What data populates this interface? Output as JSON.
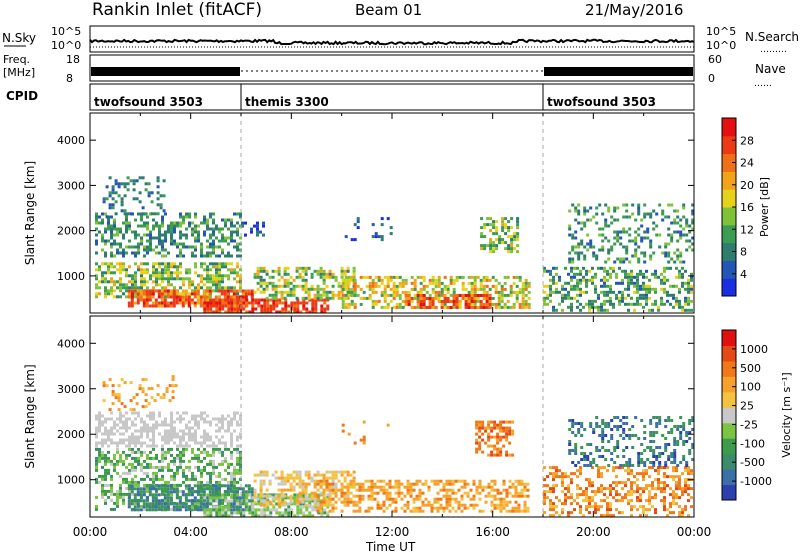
{
  "header": {
    "station": "Rankin Inlet (fitACF)",
    "beam": "Beam 01",
    "date": "21/May/2016"
  },
  "panels": {
    "nsky": {
      "left_label": "N.Sky",
      "right_label": "N.Search",
      "left_ticks": [
        "10^5",
        "10^0"
      ],
      "right_ticks": [
        "10^5",
        "10^0"
      ]
    },
    "freq": {
      "left_label_1": "Freq.",
      "left_label_2": "[MHz]",
      "right_label": "Nave",
      "left_ticks": [
        "18",
        "8"
      ],
      "right_ticks": [
        "60",
        "0"
      ]
    },
    "cpid": {
      "label": "CPID",
      "modes": [
        {
          "name": "twofsound 3503",
          "start": 0,
          "end": 6
        },
        {
          "name": "themis 3300",
          "start": 6,
          "end": 18
        },
        {
          "name": "twofsound 3503",
          "start": 18,
          "end": 24
        }
      ]
    }
  },
  "chart_data": [
    {
      "type": "heatmap",
      "name": "power",
      "ylabel": "Slant Range [km]",
      "yticks": [
        1000,
        2000,
        3000,
        4000
      ],
      "ylim": [
        180,
        4600
      ],
      "xlim": [
        0,
        24
      ],
      "colorbar": {
        "label": "Power [dB]",
        "ticks": [
          "4",
          "8",
          "12",
          "16",
          "20",
          "24",
          "28"
        ],
        "colors": [
          "#1a2fe0",
          "#2456b4",
          "#2f7d6e",
          "#3c9c52",
          "#7fc23a",
          "#e6d21c",
          "#f2a31a",
          "#f07018",
          "#ec3a16",
          "#e21010"
        ]
      }
    },
    {
      "type": "heatmap",
      "name": "velocity",
      "ylabel": "Slant Range [km]",
      "yticks": [
        1000,
        2000,
        3000,
        4000
      ],
      "ylim": [
        180,
        4600
      ],
      "xlim": [
        0,
        24
      ],
      "xlabel": "Time UT",
      "xticks": [
        "00:00",
        "04:00",
        "08:00",
        "12:00",
        "16:00",
        "20:00",
        "00:00"
      ],
      "colorbar": {
        "label": "Velocity [m s⁻¹]",
        "ticks": [
          "1000",
          "500",
          "100",
          "25",
          "-25",
          "-100",
          "-500",
          "-1000"
        ],
        "colors": [
          "#2b3fb0",
          "#3a6fa8",
          "#3c8c6c",
          "#3c9c4c",
          "#79c442",
          "#c8c8c8",
          "#f4c240",
          "#f6a12c",
          "#f07818",
          "#e64a14",
          "#e01010"
        ]
      }
    }
  ],
  "legend": {
    "dotted_hint": "………",
    "nave_dots": "……"
  }
}
